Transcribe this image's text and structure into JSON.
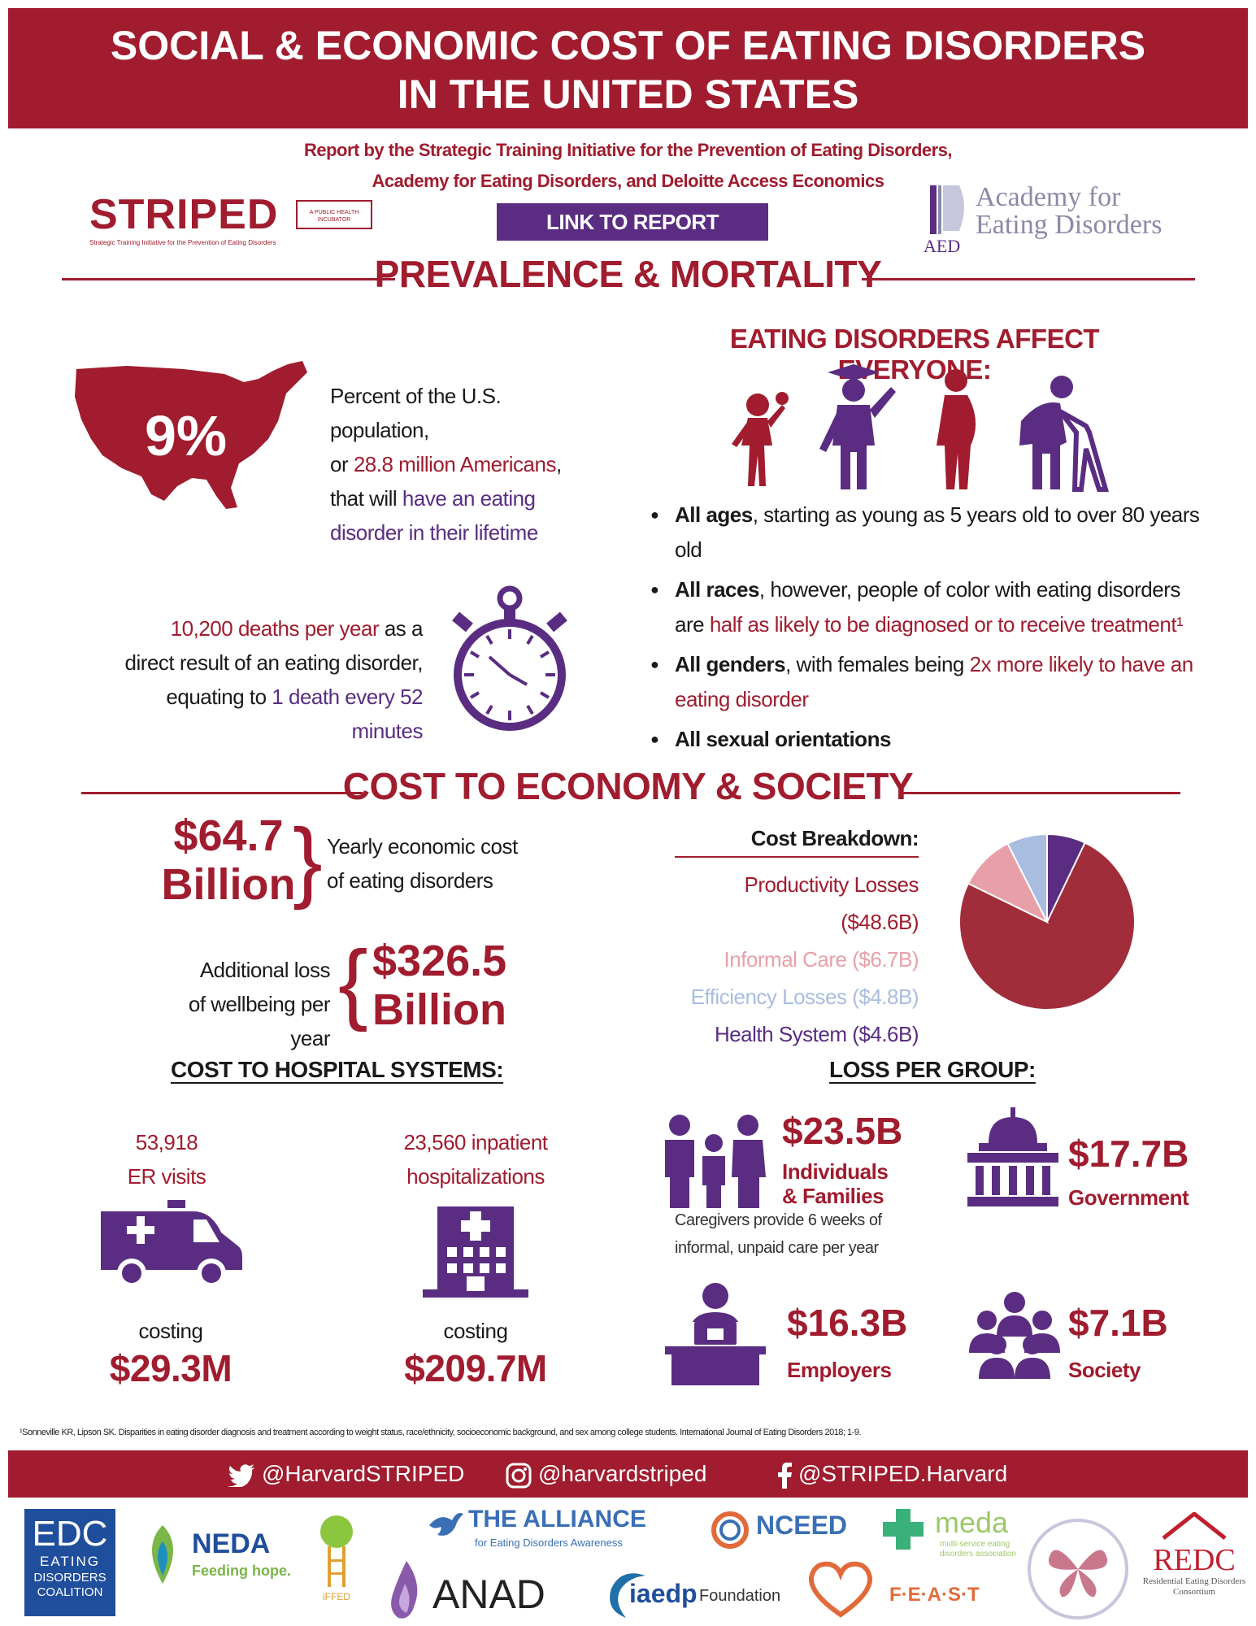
{
  "header": {
    "title_line1": "SOCIAL & ECONOMIC COST OF EATING DISORDERS",
    "title_line2": "IN THE UNITED STATES"
  },
  "report": {
    "line1": "Report by the Strategic Training Initiative for the Prevention of Eating Disorders,",
    "line2": "Academy for Eating Disorders, and Deloitte Access Economics",
    "link_label": "LINK TO REPORT"
  },
  "logos": {
    "striped_word": "STRIPED",
    "striped_badge": "A PUBLIC HEALTH INCUBATOR",
    "striped_tagline": "Strategic Training Initiative for the Prevention of Eating Disorders",
    "aed_line1": "Academy for",
    "aed_line2": "Eating Disorders",
    "aed_abbr": "AED"
  },
  "prevalence": {
    "section_title": "PREVALENCE & MORTALITY",
    "percent": "9%",
    "pct_text_1": "Percent of the U.S. population,",
    "pct_text_2a": "or ",
    "pct_text_2b": "28.8 million Americans",
    "pct_text_2c": ",",
    "pct_text_3a": "that will ",
    "pct_text_3b": "have an eating",
    "pct_text_4": "disorder in their lifetime",
    "affect_title": "EATING DISORDERS AFFECT EVERYONE:",
    "bullets": [
      {
        "bold": "All ages",
        "text": ", starting as young as 5 years old to over 80 years old",
        "red": ""
      },
      {
        "bold": "All races",
        "text": ", however, people of color with eating disorders are ",
        "red": "half as likely to be diagnosed or to receive treatment¹"
      },
      {
        "bold": "All genders",
        "text": ", with females being ",
        "red": "2x more likely to have an eating disorder"
      },
      {
        "bold": "All sexual orientations",
        "text": "",
        "red": ""
      }
    ],
    "deaths_1a": "10,200 deaths per year",
    "deaths_1b": " as a",
    "deaths_2": "direct result of an eating disorder,",
    "deaths_3a": "equating to ",
    "deaths_3b": "1 death every 52 minutes"
  },
  "economy": {
    "section_title": "COST TO ECONOMY & SOCIETY",
    "yearly_amount_1": "$64.7",
    "yearly_amount_2": "Billion",
    "yearly_text_1": "Yearly economic cost",
    "yearly_text_2": "of eating disorders",
    "loss_text_1": "Additional loss",
    "loss_text_2": "of wellbeing per year",
    "loss_amount_1": "$326.5",
    "loss_amount_2": "Billion",
    "breakdown_title": "Cost Breakdown:",
    "breakdown": [
      {
        "label": "Productivity Losses ($48.6B)",
        "color": "#a01c2e"
      },
      {
        "label": "Informal Care ($6.7B)",
        "color": "#e8a0a8"
      },
      {
        "label": "Efficiency Losses ($4.8B)",
        "color": "#a9bde0"
      },
      {
        "label": "Health System ($4.6B)",
        "color": "#5a2d82"
      }
    ]
  },
  "chart_data": {
    "type": "pie",
    "categories": [
      "Productivity Losses",
      "Informal Care",
      "Efficiency Losses",
      "Health System"
    ],
    "values": [
      48.6,
      6.7,
      4.8,
      4.6
    ],
    "colors": [
      "#a12c3a",
      "#e8a0a8",
      "#a9bde0",
      "#5a2d82"
    ]
  },
  "hospital": {
    "title": "COST TO HOSPITAL SYSTEMS:",
    "er_line1": "53,918",
    "er_line2": "ER visits",
    "inp_line1": "23,560 inpatient",
    "inp_line2": "hospitalizations",
    "costing": "costing",
    "er_cost": "$29.3M",
    "inp_cost": "$209.7M"
  },
  "groups": {
    "title": "LOSS PER GROUP:",
    "individuals_amount": "$23.5B",
    "individuals_label_1": "Individuals",
    "individuals_label_2": "& Families",
    "caregivers_1": "Caregivers provide 6 weeks of",
    "caregivers_2": "informal, unpaid care per year",
    "government_amount": "$17.7B",
    "government_label": "Government",
    "employers_amount": "$16.3B",
    "employers_label": "Employers",
    "society_amount": "$7.1B",
    "society_label": "Society"
  },
  "footnote": "¹Sonneville KR, Lipson SK. Disparities in eating disorder diagnosis and treatment according to weight status, race/ethnicity, socioeconomic background, and sex among college students. International Journal of Eating Disorders 2018; 1-9.",
  "social": {
    "twitter": "@HarvardSTRIPED",
    "instagram": "@harvardstriped",
    "facebook": "@STRIPED.Harvard"
  },
  "partners": {
    "edc_1": "EDC",
    "edc_2": "EATING",
    "edc_3": "DISORDERS",
    "edc_4": "COALITION",
    "neda_1": "NEDA",
    "neda_2": "Feeding hope.",
    "iffed": "iFFED",
    "alliance_1": "THE ALLIANCE",
    "alliance_2": "for Eating Disorders Awareness",
    "anad": "ANAD",
    "iaedp_1": "iaedp",
    "iaedp_2": "Foundation",
    "nceed": "NCEED",
    "meda_1": "meda",
    "meda_2": "multi-service eating disorders association",
    "feast": "F·E·A·S·T",
    "redc_1": "REDC",
    "redc_2": "Residential Eating Disorders Consortium"
  }
}
